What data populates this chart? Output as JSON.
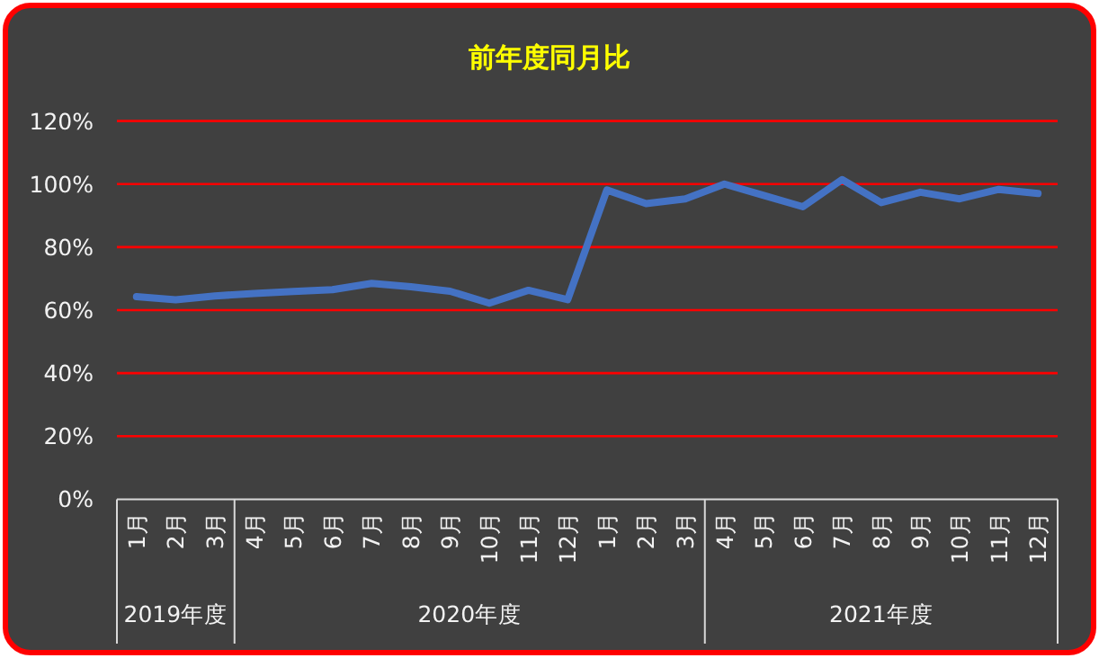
{
  "chart_data": {
    "type": "line",
    "title": "前年度同月比",
    "categories": [
      "1月",
      "2月",
      "3月",
      "4月",
      "5月",
      "6月",
      "7月",
      "8月",
      "9月",
      "10月",
      "11月",
      "12月",
      "1月",
      "2月",
      "3月",
      "4月",
      "5月",
      "6月",
      "7月",
      "8月",
      "9月",
      "10月",
      "11月",
      "12月"
    ],
    "series": [
      {
        "color": "#4472c4",
        "values": [
          64.3,
          63.3,
          64.5,
          65.3,
          65.9,
          66.5,
          68.5,
          67.4,
          66.0,
          62.2,
          66.3,
          63.3,
          98.1,
          93.8,
          95.3,
          100,
          96.4,
          92.8,
          101.4,
          94.1,
          97.4,
          95.3,
          98.3,
          97.0
        ]
      }
    ],
    "ylim": [
      0,
      120
    ],
    "yticks": [
      {
        "value": 0,
        "label": "0%"
      },
      {
        "value": 20,
        "label": "20%"
      },
      {
        "value": 40,
        "label": "40%"
      },
      {
        "value": 60,
        "label": "60%"
      },
      {
        "value": 80,
        "label": "80%"
      },
      {
        "value": 100,
        "label": "100%"
      },
      {
        "value": 120,
        "label": "120%"
      }
    ],
    "grid": "y",
    "marker": "none",
    "line_style": "solid",
    "annotations": [
      "2019年度",
      "2020年度",
      "2021年度"
    ]
  }
}
